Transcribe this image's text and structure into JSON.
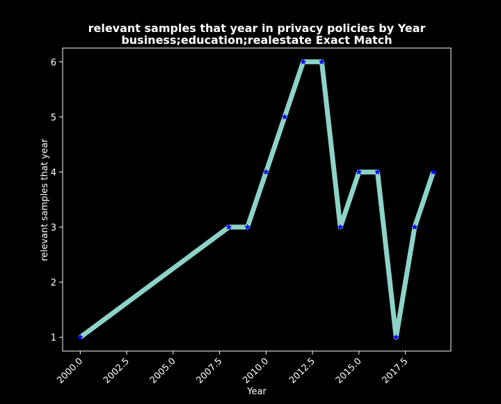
{
  "chart_data": {
    "type": "line",
    "title": "relevant samples that year in privacy policies by Year",
    "subtitle": "business;education;realestate Exact Match",
    "xlabel": "Year",
    "ylabel": "relevant samples that year",
    "xlim": [
      1999.05,
      2019.95
    ],
    "ylim": [
      0.75,
      6.25
    ],
    "xticks": [
      2000.0,
      2002.5,
      2005.0,
      2007.5,
      2010.0,
      2012.5,
      2015.0,
      2017.5
    ],
    "xtick_labels": [
      "2000.0",
      "2002.5",
      "2005.0",
      "2007.5",
      "2010.0",
      "2012.5",
      "2015.0",
      "2017.5"
    ],
    "yticks": [
      1,
      2,
      3,
      4,
      5,
      6
    ],
    "ytick_labels": [
      "1",
      "2",
      "3",
      "4",
      "5",
      "6"
    ],
    "grid": false,
    "legend": "none",
    "series": [
      {
        "x": [
          2000,
          2008,
          2009,
          2010,
          2011,
          2012,
          2013,
          2014,
          2015,
          2016,
          2017,
          2018,
          2019
        ],
        "y": [
          1,
          3,
          3,
          4,
          5,
          6,
          6,
          3,
          4,
          4,
          1,
          3,
          4
        ],
        "line_color": "#8dd3c7",
        "marker": "star",
        "marker_color": "#0000ff"
      }
    ],
    "colors": {
      "background": "#000000",
      "axes": "#ffffff",
      "text": "#ffffff"
    }
  }
}
